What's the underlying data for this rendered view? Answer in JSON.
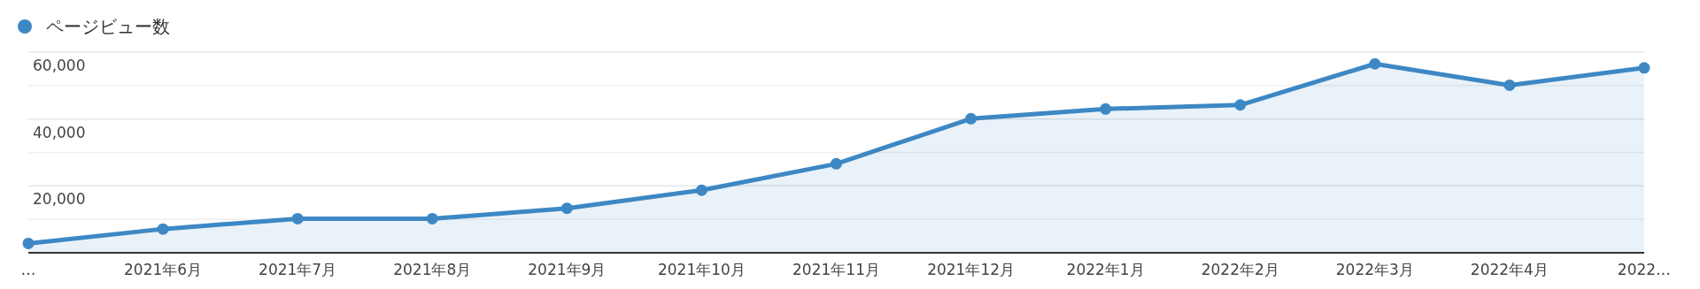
{
  "chart_data": {
    "type": "area",
    "categories": [
      "…",
      "2021年6月",
      "2021年7月",
      "2021年8月",
      "2021年9月",
      "2021年10月",
      "2021年11月",
      "2021年12月",
      "2022年1月",
      "2022年2月",
      "2022年3月",
      "2022年4月",
      "2022…"
    ],
    "series": [
      {
        "name": "ページビュー数",
        "color": "#3d88c4",
        "values": [
          2800,
          7100,
          10200,
          10200,
          13300,
          18700,
          26600,
          40100,
          43000,
          44200,
          56500,
          50100,
          55300
        ]
      }
    ],
    "ylim": [
      0,
      60000
    ],
    "yticks": [
      {
        "value": 0,
        "label": null
      },
      {
        "value": 10000,
        "label": null
      },
      {
        "value": 20000,
        "label": "20,000"
      },
      {
        "value": 30000,
        "label": null
      },
      {
        "value": 40000,
        "label": "40,000"
      },
      {
        "value": 50000,
        "label": null
      },
      {
        "value": 60000,
        "label": "60,000"
      }
    ],
    "grid": "y",
    "legend": "top left",
    "marker": "circle"
  }
}
